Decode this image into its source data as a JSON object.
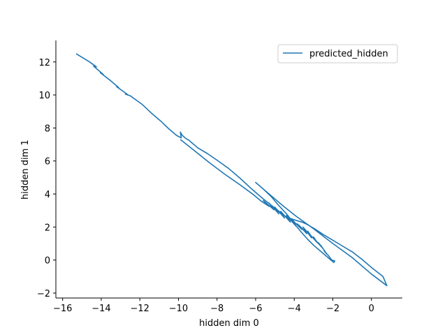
{
  "chart_data": {
    "type": "line",
    "title": "",
    "xlabel": "hidden dim 0",
    "ylabel": "hidden dim 1",
    "xlim": [
      -16.35,
      1.6
    ],
    "ylim": [
      -2.3,
      13.3
    ],
    "xticks": [
      -16,
      -14,
      -12,
      -10,
      -8,
      -6,
      -4,
      -2,
      0
    ],
    "xtick_labels": [
      "−16",
      "−14",
      "−12",
      "−10",
      "−8",
      "−6",
      "−4",
      "−2",
      "0"
    ],
    "yticks": [
      -2,
      0,
      2,
      4,
      6,
      8,
      10,
      12
    ],
    "ytick_labels": [
      "−2",
      "0",
      "2",
      "4",
      "6",
      "8",
      "10",
      "12"
    ],
    "grid": false,
    "legend": "top-right",
    "series_color": "#1f77b4",
    "series": [
      {
        "name": "predicted_hidden",
        "x": [
          -15.3,
          -14.6,
          -14.25,
          -14.4,
          -13.9,
          -14.05,
          -13.5,
          -13.6,
          -13.1,
          -13.2,
          -12.6,
          -12.75,
          -12.5,
          -11.9,
          -11.4,
          -10.9,
          -10.5,
          -10.1,
          -9.85,
          -9.9,
          -9.8,
          -9.7,
          -9.6,
          -9.45,
          -9.3,
          -9.15,
          -9.0,
          -8.5,
          -8.0,
          -7.4,
          -6.8,
          -6.2,
          -5.6,
          -5.0,
          -4.4,
          -3.9,
          -3.6,
          -3.4,
          -2.95,
          -2.5,
          -2.0,
          -1.5,
          -1.0,
          -0.5,
          0.0,
          0.6,
          0.8,
          0.0,
          -1.0,
          -2.0,
          -3.0,
          -3.9,
          -4.6,
          -5.2,
          -5.8,
          -6.0,
          -5.6,
          -5.2,
          -4.8,
          -4.4,
          -4.0,
          -3.6,
          -3.3,
          -3.0,
          -2.7,
          -2.4,
          -2.1,
          -1.95,
          -1.9,
          -2.05,
          -2.25,
          -2.45,
          -2.3,
          -2.6,
          -2.75,
          -2.55,
          -2.9,
          -3.0,
          -2.8,
          -3.15,
          -3.3,
          -3.1,
          -3.4,
          -3.55,
          -3.35,
          -3.7,
          -3.85,
          -3.6,
          -3.95,
          -4.1,
          -3.9,
          -4.25,
          -4.4,
          -4.2,
          -4.55,
          -4.7,
          -4.5,
          -4.85,
          -5.0,
          -4.8,
          -5.15,
          -5.3,
          -5.05,
          -5.45,
          -5.6,
          -5.3,
          -5.75,
          -5.9,
          -6.1,
          -6.8,
          -7.6,
          -8.4,
          -9.2,
          -9.9
        ],
        "y": [
          12.5,
          12.0,
          11.7,
          11.75,
          11.25,
          11.35,
          10.85,
          10.95,
          10.45,
          10.5,
          10.0,
          10.05,
          9.95,
          9.45,
          8.9,
          8.4,
          7.95,
          7.55,
          7.4,
          7.75,
          7.55,
          7.45,
          7.35,
          7.25,
          7.1,
          6.95,
          6.8,
          6.45,
          6.05,
          5.55,
          4.95,
          4.3,
          3.7,
          3.15,
          2.6,
          2.4,
          2.3,
          2.2,
          1.9,
          1.55,
          1.2,
          0.85,
          0.5,
          0.05,
          -0.45,
          -1.0,
          -1.55,
          -0.85,
          0.15,
          1.0,
          1.9,
          2.65,
          3.3,
          3.9,
          4.5,
          4.7,
          4.3,
          3.85,
          3.3,
          2.8,
          2.2,
          1.65,
          1.25,
          0.9,
          0.6,
          0.3,
          0.0,
          -0.15,
          -0.05,
          0.0,
          0.3,
          0.55,
          0.35,
          0.85,
          1.05,
          0.75,
          1.2,
          1.4,
          1.05,
          1.5,
          1.75,
          1.35,
          1.8,
          2.0,
          1.6,
          2.05,
          2.2,
          1.85,
          2.25,
          2.45,
          2.05,
          2.5,
          2.7,
          2.3,
          2.75,
          2.95,
          2.55,
          3.0,
          3.2,
          2.8,
          3.25,
          3.45,
          3.05,
          3.45,
          3.6,
          3.25,
          3.6,
          3.75,
          3.95,
          4.55,
          5.2,
          5.9,
          6.65,
          7.3
        ]
      }
    ]
  }
}
